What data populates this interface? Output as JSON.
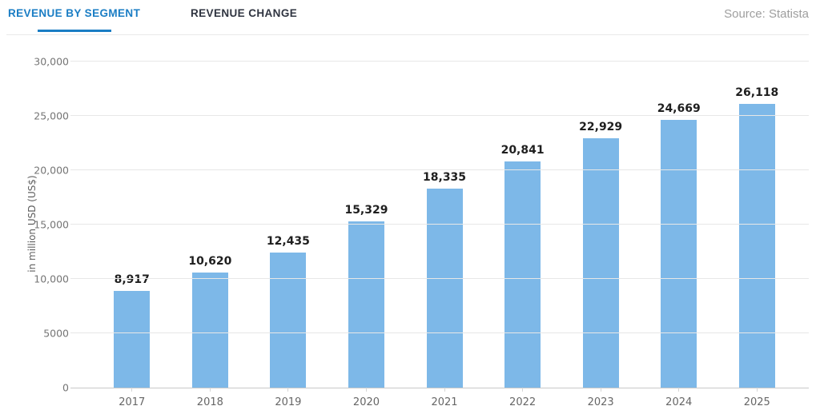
{
  "header": {
    "tabs": [
      {
        "label": "REVENUE BY SEGMENT",
        "active": true
      },
      {
        "label": "REVENUE CHANGE",
        "active": false
      }
    ],
    "source": "Source: Statista"
  },
  "chart_data": {
    "type": "bar",
    "title": "",
    "xlabel": "",
    "ylabel": "in million USD (US$)",
    "categories": [
      "2017",
      "2018",
      "2019",
      "2020",
      "2021",
      "2022",
      "2023",
      "2024",
      "2025"
    ],
    "values": [
      8917,
      10620,
      12435,
      15329,
      18335,
      20841,
      22929,
      24669,
      26118
    ],
    "value_labels": [
      "8,917",
      "10,620",
      "12,435",
      "15,329",
      "18,335",
      "20,841",
      "22,929",
      "24,669",
      "26,118"
    ],
    "ylim": [
      0,
      30000
    ],
    "ytick_values": [
      0,
      5000,
      10000,
      15000,
      20000,
      25000,
      30000
    ],
    "ytick_labels": [
      "0",
      "5000",
      "10,000",
      "15,000",
      "20,000",
      "25,000",
      "30,000"
    ],
    "grid": true,
    "legend_position": "none",
    "colors": {
      "bar": "#7db8e8",
      "value_label": "#1f1f1f",
      "tick_label": "#757575",
      "gridline": "#e7e7e7",
      "axis_line": "#c9c9c9",
      "tab_active": "#1a7dc4",
      "tab_inactive": "#2f3440",
      "source_text": "#9e9e9e"
    }
  }
}
